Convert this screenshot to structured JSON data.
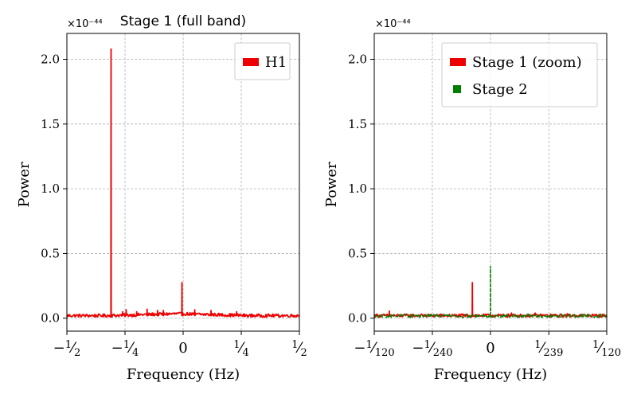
{
  "chart_data": [
    {
      "type": "line",
      "title": "Stage 1 (full band)",
      "xlabel": "Frequency (Hz)",
      "ylabel": "Power",
      "offset_text": "×10⁻⁴⁴",
      "xlim": [
        -0.5,
        0.5
      ],
      "ylim": [
        -0.1,
        2.2
      ],
      "x_tick_values": [
        -0.5,
        -0.25,
        0,
        0.25,
        0.5
      ],
      "x_ticks": [
        {
          "num": "1",
          "den": "2",
          "neg": true
        },
        {
          "num": "1",
          "den": "4",
          "neg": true
        },
        {
          "text": "0"
        },
        {
          "num": "1",
          "den": "4",
          "neg": false
        },
        {
          "num": "1",
          "den": "2",
          "neg": false
        }
      ],
      "y_tick_values": [
        0.0,
        0.5,
        1.0,
        1.5,
        2.0
      ],
      "y_ticks": [
        "0.0",
        "0.5",
        "1.0",
        "1.5",
        "2.0"
      ],
      "grid": true,
      "legend_position": "top-right",
      "series": [
        {
          "name": "H1",
          "color": "#ee0000",
          "baseline": 0.02,
          "noise": 0.012,
          "peaks": [
            {
              "x": -0.31,
              "y": 2.08
            },
            {
              "x": -0.26,
              "y": 0.05
            },
            {
              "x": -0.245,
              "y": 0.065
            },
            {
              "x": -0.2,
              "y": 0.05
            },
            {
              "x": -0.155,
              "y": 0.07
            },
            {
              "x": -0.11,
              "y": 0.06
            },
            {
              "x": -0.085,
              "y": 0.06
            },
            {
              "x": -0.005,
              "y": 0.275
            },
            {
              "x": 0.05,
              "y": 0.065
            },
            {
              "x": 0.12,
              "y": 0.06
            },
            {
              "x": 0.23,
              "y": 0.05
            }
          ]
        }
      ]
    },
    {
      "type": "line",
      "title": "",
      "xlabel": "Frequency (Hz)",
      "ylabel": "Power",
      "offset_text": "×10⁻⁴⁴",
      "xlim": [
        -0.008333,
        0.008333
      ],
      "ylim": [
        -0.1,
        2.2
      ],
      "x_tick_values": [
        -0.008333,
        -0.004167,
        0,
        0.004184,
        0.008333
      ],
      "x_ticks": [
        {
          "num": "1",
          "den": "120",
          "neg": true
        },
        {
          "num": "1",
          "den": "240",
          "neg": true
        },
        {
          "text": "0"
        },
        {
          "num": "1",
          "den": "239",
          "neg": false
        },
        {
          "num": "1",
          "den": "120",
          "neg": false
        }
      ],
      "y_tick_values": [
        0.0,
        0.5,
        1.0,
        1.5,
        2.0
      ],
      "y_ticks": [
        "0.0",
        "0.5",
        "1.0",
        "1.5",
        "2.0"
      ],
      "grid": true,
      "legend_position": "top-right",
      "series": [
        {
          "name": "Stage 1 (zoom)",
          "color": "#ee0000",
          "baseline": 0.02,
          "noise": 0.012,
          "peaks": [
            {
              "x": -0.00725,
              "y": 0.055
            },
            {
              "x": -0.0013,
              "y": 0.275
            },
            {
              "x": 0.0015,
              "y": 0.04
            },
            {
              "x": 0.0032,
              "y": 0.04
            },
            {
              "x": 0.0055,
              "y": 0.035
            }
          ]
        },
        {
          "name": "Stage 2",
          "color": "#008000",
          "dashed": true,
          "baseline": 0.018,
          "noise": 0.012,
          "peaks": [
            {
              "x": 0.0,
              "y": 0.4
            }
          ]
        }
      ]
    }
  ]
}
